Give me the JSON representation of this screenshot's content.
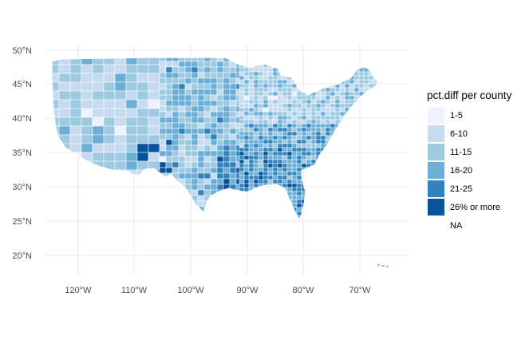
{
  "map": {
    "x_ticks": [
      "120°W",
      "110°W",
      "100°W",
      "90°W",
      "80°W",
      "70°W"
    ],
    "y_ticks": [
      "20°N",
      "25°N",
      "30°N",
      "35°N",
      "40°N",
      "45°N",
      "50°N"
    ],
    "grid": true,
    "region": "contiguous United States counties",
    "fill_palette": [
      "#eff3ff",
      "#c6dbef",
      "#9ecae1",
      "#6baed6",
      "#3182bd",
      "#08519c"
    ],
    "border_color": "#ffffff"
  },
  "legend": {
    "title": "pct.diff per county",
    "items": [
      {
        "label": "1-5",
        "color": "#eff3ff"
      },
      {
        "label": "6-10",
        "color": "#c6dbef"
      },
      {
        "label": "11-15",
        "color": "#9ecae1"
      },
      {
        "label": "16-20",
        "color": "#6baed6"
      },
      {
        "label": "21-25",
        "color": "#3182bd"
      },
      {
        "label": "26% or more",
        "color": "#08519c"
      },
      {
        "label": "NA",
        "color": "#ffffff"
      }
    ]
  }
}
